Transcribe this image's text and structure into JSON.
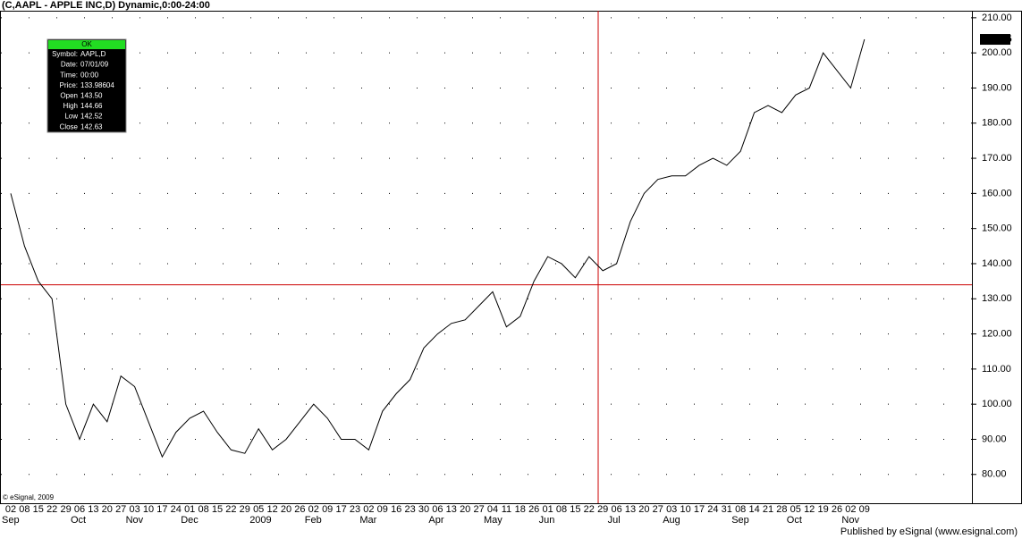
{
  "chart_data": {
    "type": "line",
    "title": "(C,AAPL - APPLE INC,D) Dynamic,0:00-24:00",
    "copyright": "© eSignal, 2009",
    "footer": "Published by eSignal (www.esignal.com)",
    "categories": [
      "02",
      "08",
      "15",
      "22",
      "29",
      "06",
      "13",
      "20",
      "27",
      "03",
      "10",
      "17",
      "24",
      "01",
      "08",
      "15",
      "22",
      "29",
      "05",
      "12",
      "20",
      "26",
      "02",
      "09",
      "17",
      "23",
      "02",
      "09",
      "16",
      "23",
      "30",
      "06",
      "13",
      "20",
      "27",
      "04",
      "11",
      "18",
      "26",
      "01",
      "08",
      "15",
      "22",
      "29",
      "06",
      "13",
      "20",
      "27",
      "03",
      "10",
      "17",
      "24",
      "31",
      "08",
      "14",
      "21",
      "28",
      "05",
      "12",
      "19",
      "26",
      "02",
      "09"
    ],
    "months": [
      "Sep",
      null,
      null,
      null,
      null,
      "Oct",
      null,
      null,
      null,
      "Nov",
      null,
      null,
      null,
      "Dec",
      null,
      null,
      null,
      null,
      "2009",
      null,
      null,
      null,
      "Feb",
      null,
      null,
      null,
      "Mar",
      null,
      null,
      null,
      null,
      "Apr",
      null,
      null,
      null,
      "May",
      null,
      null,
      null,
      "Jun",
      null,
      null,
      null,
      null,
      "Jul",
      null,
      null,
      null,
      "Aug",
      null,
      null,
      null,
      null,
      "Sep",
      null,
      null,
      null,
      "Oct",
      null,
      null,
      null,
      "Nov",
      null
    ],
    "series": [
      {
        "name": "AAPL",
        "color": "#000000",
        "values": [
          160,
          145,
          135,
          130,
          100,
          90,
          100,
          95,
          108,
          105,
          95,
          85,
          92,
          96,
          98,
          92,
          87,
          86,
          93,
          87,
          90,
          95,
          100,
          96,
          90,
          90,
          87,
          98,
          103,
          107,
          116,
          120,
          123,
          124,
          128,
          132,
          122,
          125,
          135,
          142,
          140,
          136,
          142,
          138,
          140,
          152,
          160,
          164,
          165,
          165,
          168,
          170,
          168,
          172,
          183,
          185,
          183,
          188,
          190,
          200,
          195,
          190,
          203.85
        ]
      }
    ],
    "ylim": [
      71.8,
      212
    ],
    "yticks": [
      {
        "value": 80,
        "label": "80.00"
      },
      {
        "value": 90,
        "label": "90.00"
      },
      {
        "value": 100,
        "label": "100.00"
      },
      {
        "value": 110,
        "label": "110.00"
      },
      {
        "value": 120,
        "label": "120.00"
      },
      {
        "value": 130,
        "label": "130.00"
      },
      {
        "value": 140,
        "label": "140.00"
      },
      {
        "value": 150,
        "label": "150.00"
      },
      {
        "value": 160,
        "label": "160.00"
      },
      {
        "value": 170,
        "label": "170.00"
      },
      {
        "value": 180,
        "label": "180.00"
      },
      {
        "value": 190,
        "label": "190.00"
      },
      {
        "value": 200,
        "label": "200.00"
      },
      {
        "value": 210,
        "label": "210.00"
      }
    ],
    "grid": true,
    "crosshair_color": "#cc0000",
    "crosshair_price": 133.98604,
    "info": {
      "header": "OK",
      "rows": [
        [
          "Symbol:",
          "AAPL,D"
        ],
        [
          "Date:",
          "07/01/09"
        ],
        [
          "Time:",
          "00:00"
        ],
        [
          "Price:",
          null
        ],
        [
          "Open",
          "143.50"
        ],
        [
          "High",
          "144.66"
        ],
        [
          "Low",
          "142.52"
        ],
        [
          "Close",
          "142.63"
        ]
      ]
    }
  }
}
